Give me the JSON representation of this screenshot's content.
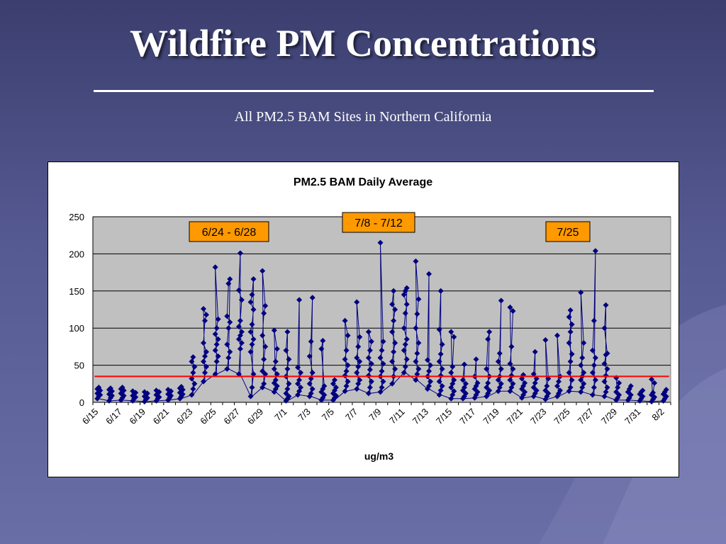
{
  "slide": {
    "title": "Wildfire PM Concentrations",
    "subtitle": "All PM2.5 BAM Sites in Northern California"
  },
  "colors": {
    "series": "#000080",
    "threshold": "#ff0000",
    "plot_area": "#c0c0c0",
    "callout": "#ff9900"
  },
  "chart_data": {
    "type": "scatter",
    "title": "PM2.5 BAM Daily Average",
    "xlabel": "ug/m3",
    "ylabel": "",
    "ylim": [
      0,
      250
    ],
    "yticks": [
      0,
      50,
      100,
      150,
      200,
      250
    ],
    "grid": true,
    "dates": [
      "6/15",
      "6/16",
      "6/17",
      "6/18",
      "6/19",
      "6/20",
      "6/21",
      "6/22",
      "6/23",
      "6/24",
      "6/25",
      "6/26",
      "6/27",
      "6/28",
      "6/29",
      "6/30",
      "7/1",
      "7/2",
      "7/3",
      "7/4",
      "7/5",
      "7/6",
      "7/7",
      "7/8",
      "7/9",
      "7/10",
      "7/11",
      "7/12",
      "7/13",
      "7/14",
      "7/15",
      "7/16",
      "7/17",
      "7/18",
      "7/19",
      "7/20",
      "7/21",
      "7/22",
      "7/23",
      "7/24",
      "7/25",
      "7/26",
      "7/27",
      "7/28",
      "7/29",
      "7/30",
      "7/31",
      "8/1",
      "8/2"
    ],
    "xtick_labels": [
      "6/15",
      "6/17",
      "6/19",
      "6/21",
      "6/23",
      "6/25",
      "6/27",
      "6/29",
      "7/1",
      "7/3",
      "7/5",
      "7/7",
      "7/9",
      "7/11",
      "7/13",
      "7/15",
      "7/17",
      "7/19",
      "7/21",
      "7/23",
      "7/25",
      "7/27",
      "7/29",
      "7/31",
      "8/2"
    ],
    "threshold": 35,
    "daily_values": [
      [
        5,
        8,
        10,
        12,
        14,
        16,
        18,
        20
      ],
      [
        2,
        6,
        9,
        11,
        13,
        15,
        17,
        19
      ],
      [
        3,
        6,
        9,
        12,
        14,
        16,
        18,
        20
      ],
      [
        2,
        5,
        7,
        9,
        11,
        13,
        15
      ],
      [
        1,
        4,
        6,
        8,
        10,
        12,
        14
      ],
      [
        2,
        5,
        7,
        10,
        12,
        14,
        16
      ],
      [
        3,
        6,
        9,
        11,
        13,
        15,
        17
      ],
      [
        5,
        8,
        11,
        13,
        15,
        17,
        19,
        21
      ],
      [
        10,
        18,
        25,
        32,
        40,
        48,
        55,
        61
      ],
      [
        28,
        40,
        48,
        55,
        62,
        68,
        80,
        110,
        118,
        126
      ],
      [
        38,
        55,
        62,
        70,
        78,
        85,
        92,
        100,
        112,
        182
      ],
      [
        45,
        60,
        68,
        78,
        100,
        108,
        116,
        160,
        166
      ],
      [
        38,
        72,
        80,
        85,
        90,
        95,
        102,
        110,
        138,
        151,
        201
      ],
      [
        8,
        20,
        38,
        68,
        78,
        85,
        95,
        105,
        125,
        135,
        145,
        166
      ],
      [
        20,
        25,
        38,
        42,
        58,
        75,
        90,
        120,
        130,
        177
      ],
      [
        14,
        18,
        22,
        26,
        30,
        38,
        45,
        55,
        72,
        97
      ],
      [
        2,
        5,
        8,
        12,
        18,
        25,
        35,
        45,
        58,
        70,
        95
      ],
      [
        10,
        15,
        20,
        25,
        30,
        40,
        47,
        138
      ],
      [
        8,
        12,
        18,
        25,
        32,
        40,
        62,
        82,
        141
      ],
      [
        3,
        6,
        10,
        14,
        18,
        22,
        72,
        83
      ],
      [
        3,
        6,
        9,
        12,
        16,
        20,
        25,
        30
      ],
      [
        15,
        22,
        28,
        36,
        42,
        50,
        58,
        70,
        90,
        110
      ],
      [
        18,
        25,
        30,
        40,
        48,
        55,
        60,
        75,
        88,
        135
      ],
      [
        12,
        20,
        28,
        36,
        44,
        52,
        60,
        70,
        82,
        95
      ],
      [
        14,
        20,
        28,
        35,
        42,
        52,
        60,
        70,
        82,
        215
      ],
      [
        25,
        35,
        45,
        55,
        68,
        80,
        95,
        110,
        125,
        132,
        150
      ],
      [
        40,
        48,
        58,
        70,
        78,
        85,
        100,
        120,
        132,
        145,
        150,
        154
      ],
      [
        30,
        38,
        45,
        55,
        66,
        80,
        100,
        119,
        139,
        190
      ],
      [
        18,
        22,
        28,
        35,
        42,
        50,
        57,
        173
      ],
      [
        10,
        16,
        22,
        28,
        36,
        45,
        55,
        65,
        78,
        98,
        150
      ],
      [
        5,
        10,
        15,
        20,
        25,
        30,
        40,
        48,
        88,
        95
      ],
      [
        5,
        8,
        12,
        16,
        20,
        25,
        30,
        51
      ],
      [
        6,
        10,
        14,
        18,
        22,
        26,
        35,
        58
      ],
      [
        8,
        12,
        16,
        20,
        26,
        35,
        45,
        85,
        95
      ],
      [
        15,
        20,
        25,
        30,
        35,
        45,
        55,
        66,
        137
      ],
      [
        15,
        20,
        25,
        30,
        36,
        45,
        52,
        75,
        123,
        128
      ],
      [
        6,
        10,
        14,
        18,
        22,
        26,
        32,
        37
      ],
      [
        8,
        12,
        16,
        20,
        26,
        32,
        38,
        68
      ],
      [
        4,
        8,
        12,
        16,
        22,
        32,
        84
      ],
      [
        8,
        12,
        16,
        22,
        28,
        35,
        90
      ],
      [
        15,
        20,
        30,
        40,
        55,
        65,
        80,
        95,
        105,
        115,
        124
      ],
      [
        14,
        20,
        25,
        30,
        35,
        40,
        50,
        60,
        80,
        148
      ],
      [
        10,
        20,
        30,
        40,
        50,
        60,
        70,
        110,
        204
      ],
      [
        8,
        14,
        20,
        28,
        36,
        45,
        52,
        64,
        66,
        100,
        131
      ],
      [
        3,
        6,
        10,
        14,
        20,
        26,
        33
      ],
      [
        3,
        6,
        10,
        14,
        18,
        22
      ],
      [
        2,
        5,
        8,
        11,
        14,
        16
      ],
      [
        1,
        4,
        7,
        10,
        13,
        26,
        31
      ],
      [
        2,
        5,
        8,
        11,
        14,
        17
      ]
    ]
  },
  "annotations": [
    {
      "label": "6/24 - 6/28"
    },
    {
      "label": "7/8 - 7/12"
    },
    {
      "label": "7/25"
    }
  ]
}
